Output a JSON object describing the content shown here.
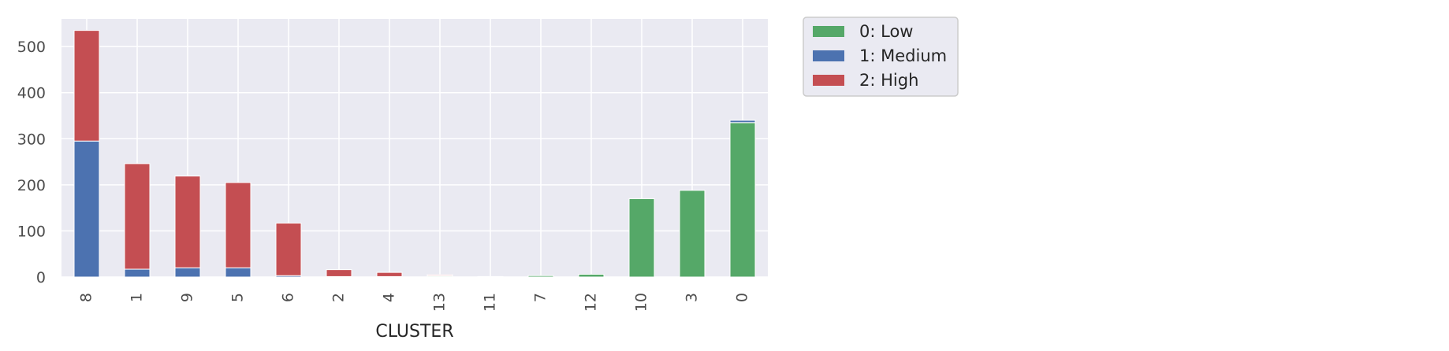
{
  "chart_data": {
    "type": "bar",
    "stacked": true,
    "categories": [
      "8",
      "1",
      "9",
      "5",
      "6",
      "2",
      "4",
      "13",
      "11",
      "7",
      "12",
      "10",
      "3",
      "0"
    ],
    "series": [
      {
        "name": "0: Low",
        "color": "#55a868",
        "values": [
          0,
          0,
          0,
          0,
          0,
          0,
          0,
          2,
          1,
          3,
          6,
          170,
          188,
          335
        ]
      },
      {
        "name": "1: Medium",
        "color": "#4c72b0",
        "values": [
          295,
          17,
          20,
          20,
          3,
          1,
          1,
          1,
          0,
          0,
          0,
          0,
          0,
          5
        ]
      },
      {
        "name": "2: High",
        "color": "#c44e52",
        "values": [
          240,
          229,
          199,
          185,
          114,
          15,
          9,
          2,
          0,
          0,
          0,
          0,
          0,
          0
        ]
      }
    ],
    "xlabel": "CLUSTER",
    "ylabel": "",
    "ylim": [
      0,
      560
    ],
    "yticks": [
      0,
      100,
      200,
      300,
      400,
      500
    ],
    "grid": true,
    "legend_position": "outside-upper-right"
  }
}
